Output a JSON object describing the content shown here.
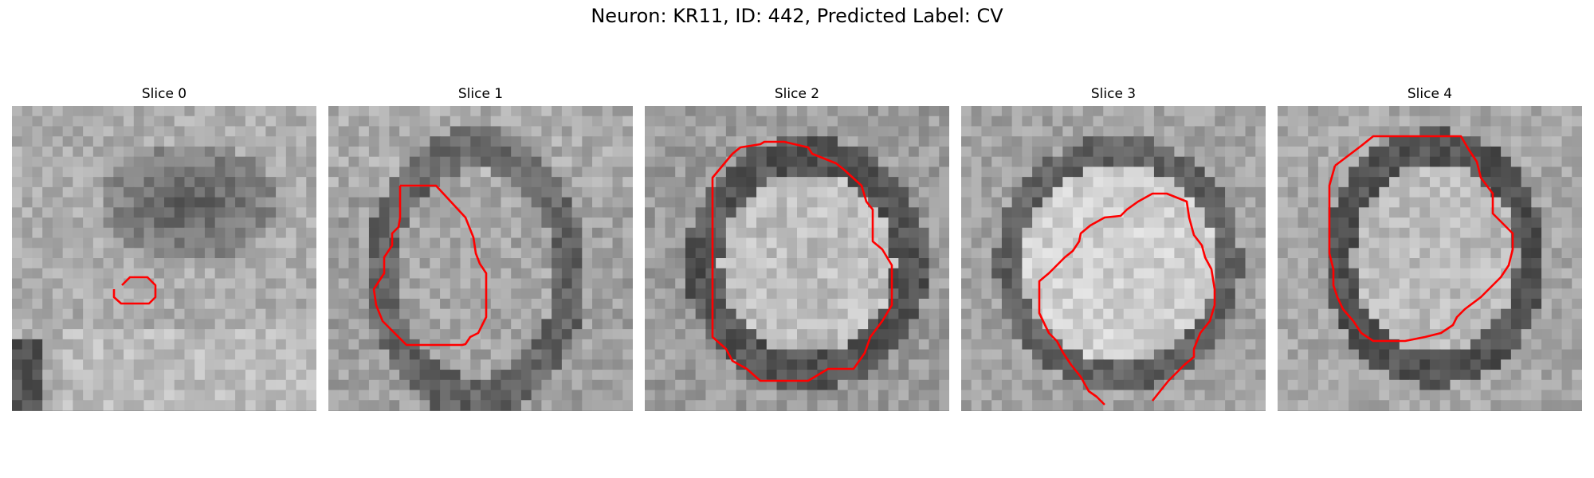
{
  "figure": {
    "title": "Neuron: KR11, ID: 442, Predicted Label: CV"
  },
  "panels": [
    {
      "title": "Slice 0",
      "pattern": "blob-dark-upper",
      "contour_color": "#ff0000"
    },
    {
      "title": "Slice 1",
      "pattern": "diagonal-cell",
      "contour_color": "#ff0000"
    },
    {
      "title": "Slice 2",
      "pattern": "ring-cell",
      "contour_color": "#ff0000"
    },
    {
      "title": "Slice 3",
      "pattern": "large-bright-cell",
      "contour_color": "#ff0000"
    },
    {
      "title": "Slice 4",
      "pattern": "ring-cell-dark-border",
      "contour_color": "#ff0000"
    }
  ]
}
